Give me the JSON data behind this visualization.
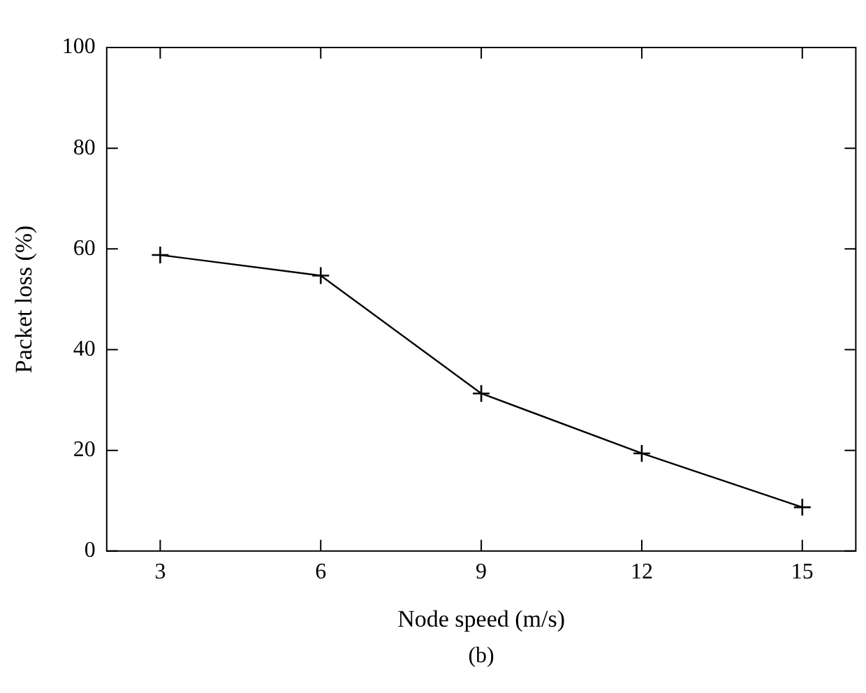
{
  "chart_data": {
    "type": "line",
    "xlabel": "Node speed (m/s)",
    "ylabel": "Packet loss (%)",
    "annotations": [
      "(b)"
    ],
    "x": [
      3,
      6,
      9,
      12,
      15
    ],
    "series": [
      {
        "color": "#000000",
        "values": [
          58.8,
          54.7,
          31.3,
          19.4,
          8.7
        ]
      }
    ],
    "xlim": [
      2,
      16
    ],
    "xticks": [
      3,
      6,
      9,
      12,
      15
    ],
    "ylim": [
      0,
      100
    ],
    "yticks": [
      0,
      20,
      40,
      60,
      80,
      100
    ],
    "grid": false,
    "legend": false,
    "marker": "cross",
    "line_style": "solid"
  }
}
